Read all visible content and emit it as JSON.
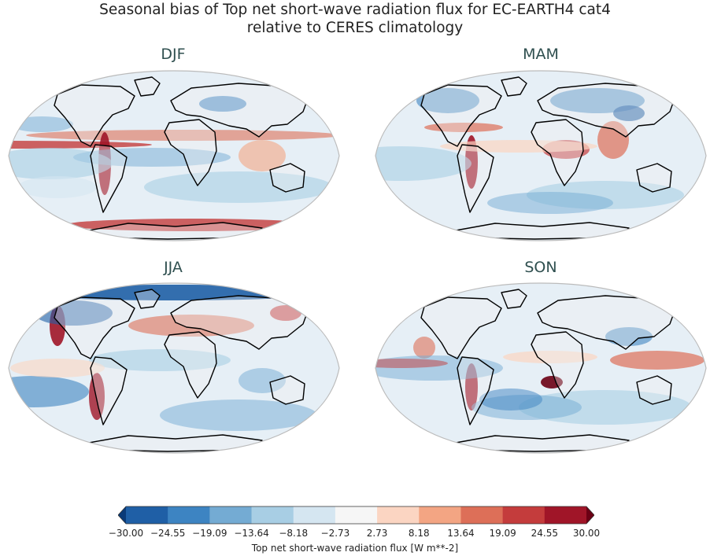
{
  "figure": {
    "title_line1": "Seasonal bias of Top net short-wave radiation flux for EC-EARTH4 cat4",
    "title_line2": "relative to CERES climatology"
  },
  "chart_data": {
    "type": "heatmap",
    "projection": "Robinson",
    "panels": [
      {
        "label": "DJF"
      },
      {
        "label": "MAM"
      },
      {
        "label": "JJA"
      },
      {
        "label": "SON"
      }
    ],
    "colorbar": {
      "label": "Top net short-wave radiation flux [W m**-2]",
      "ticks": [
        "−30.00",
        "−24.55",
        "−19.09",
        "−13.64",
        "−8.18",
        "−2.73",
        "2.73",
        "8.18",
        "13.64",
        "19.09",
        "24.55",
        "30.00"
      ],
      "tick_values": [
        -30.0,
        -24.55,
        -19.09,
        -13.64,
        -8.18,
        -2.73,
        2.73,
        8.18,
        13.64,
        19.09,
        24.55,
        30.0
      ],
      "colors": [
        "#1f5fa6",
        "#3d84c2",
        "#74abd3",
        "#a8cee4",
        "#d5e6f1",
        "#f6f6f6",
        "#fbd5c2",
        "#f3a583",
        "#dd6f58",
        "#c43c3c",
        "#a01528"
      ],
      "under_color": "#0a3a78",
      "over_color": "#6b0014",
      "extend": "both"
    }
  }
}
